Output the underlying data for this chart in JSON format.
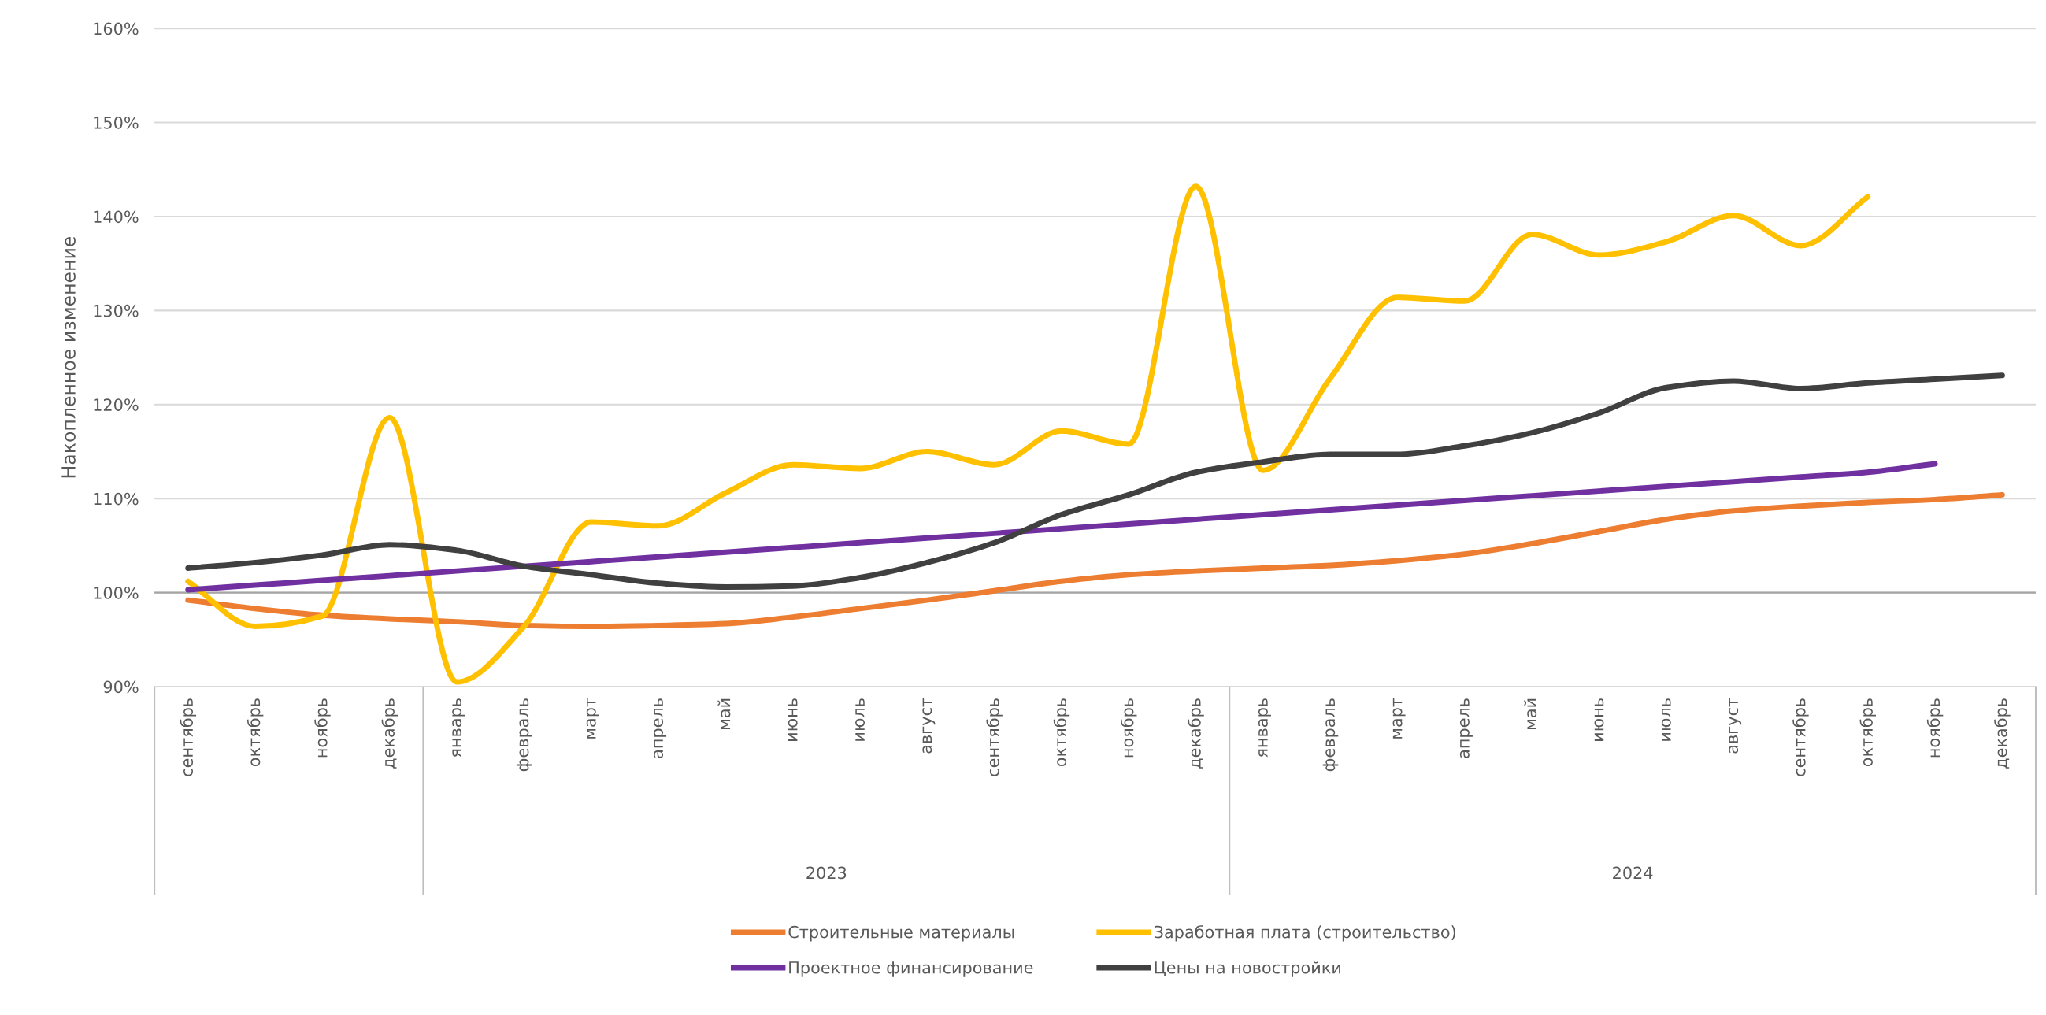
{
  "chart_data": {
    "type": "line",
    "ylabel": "Накопленное изменение",
    "categories": [
      "сентябрь",
      "октябрь",
      "ноябрь",
      "декабрь",
      "январь",
      "февраль",
      "март",
      "апрель",
      "май",
      "июнь",
      "июль",
      "август",
      "сентябрь",
      "октябрь",
      "ноябрь",
      "декабрь",
      "январь",
      "февраль",
      "март",
      "апрель",
      "май",
      "июнь",
      "июль",
      "август",
      "сентябрь",
      "октябрь",
      "ноябрь",
      "декабрь"
    ],
    "annotations": [
      "2023",
      "2024"
    ],
    "series": [
      {
        "name": "Строительные материалы",
        "color": "#ed7d31",
        "values": [
          99.2,
          98.3,
          97.6,
          97.2,
          96.9,
          96.5,
          96.4,
          96.5,
          96.7,
          97.4,
          98.3,
          99.2,
          100.2,
          101.2,
          101.9,
          102.3,
          102.6,
          102.9,
          103.4,
          104.1,
          105.2,
          106.5,
          107.8,
          108.7,
          109.2,
          109.6,
          109.9,
          110.4
        ]
      },
      {
        "name": "Заработная плата (строительство)",
        "color": "#ffc000",
        "values": [
          101.2,
          96.4,
          97.5,
          118.6,
          90.5,
          96.4,
          107.5,
          107.1,
          110.6,
          113.6,
          113.2,
          115.0,
          113.6,
          117.2,
          115.8,
          143.2,
          113.0,
          122.8,
          131.4,
          131.0,
          138.1,
          135.9,
          137.3,
          140.1,
          136.9,
          142.1,
          null,
          null
        ]
      },
      {
        "name": "Проектное финансирование",
        "color": "#7030a0",
        "values": [
          100.3,
          100.8,
          101.3,
          101.8,
          102.3,
          102.8,
          103.3,
          103.8,
          104.3,
          104.8,
          105.3,
          105.8,
          106.3,
          106.8,
          107.3,
          107.8,
          108.3,
          108.8,
          109.3,
          109.8,
          110.3,
          110.8,
          111.3,
          111.8,
          112.3,
          112.8,
          113.7,
          null
        ]
      },
      {
        "name": "Цены на новостройки",
        "color": "#404040",
        "values": [
          102.6,
          103.2,
          104.0,
          105.1,
          104.5,
          102.8,
          101.9,
          101.0,
          100.6,
          100.7,
          101.6,
          103.2,
          105.3,
          108.3,
          110.4,
          112.8,
          113.9,
          114.7,
          114.7,
          115.6,
          117.0,
          119.1,
          121.8,
          122.5,
          121.7,
          122.3,
          122.7,
          123.1
        ]
      }
    ],
    "ylim": [
      90,
      160
    ],
    "yticks": [
      {
        "value": 90,
        "label": "90%"
      },
      {
        "value": 100,
        "label": "100%"
      },
      {
        "value": 110,
        "label": "110%"
      },
      {
        "value": 120,
        "label": "120%"
      },
      {
        "value": 130,
        "label": "130%"
      },
      {
        "value": 140,
        "label": "140%"
      },
      {
        "value": 150,
        "label": "150%"
      },
      {
        "value": 160,
        "label": "160%"
      }
    ],
    "ref_lines": [
      {
        "axis": "y",
        "value": 100,
        "color": "#a6a6a6"
      }
    ],
    "grid": "y",
    "legend": "bottom",
    "line_style": "solid",
    "marker": "none"
  }
}
